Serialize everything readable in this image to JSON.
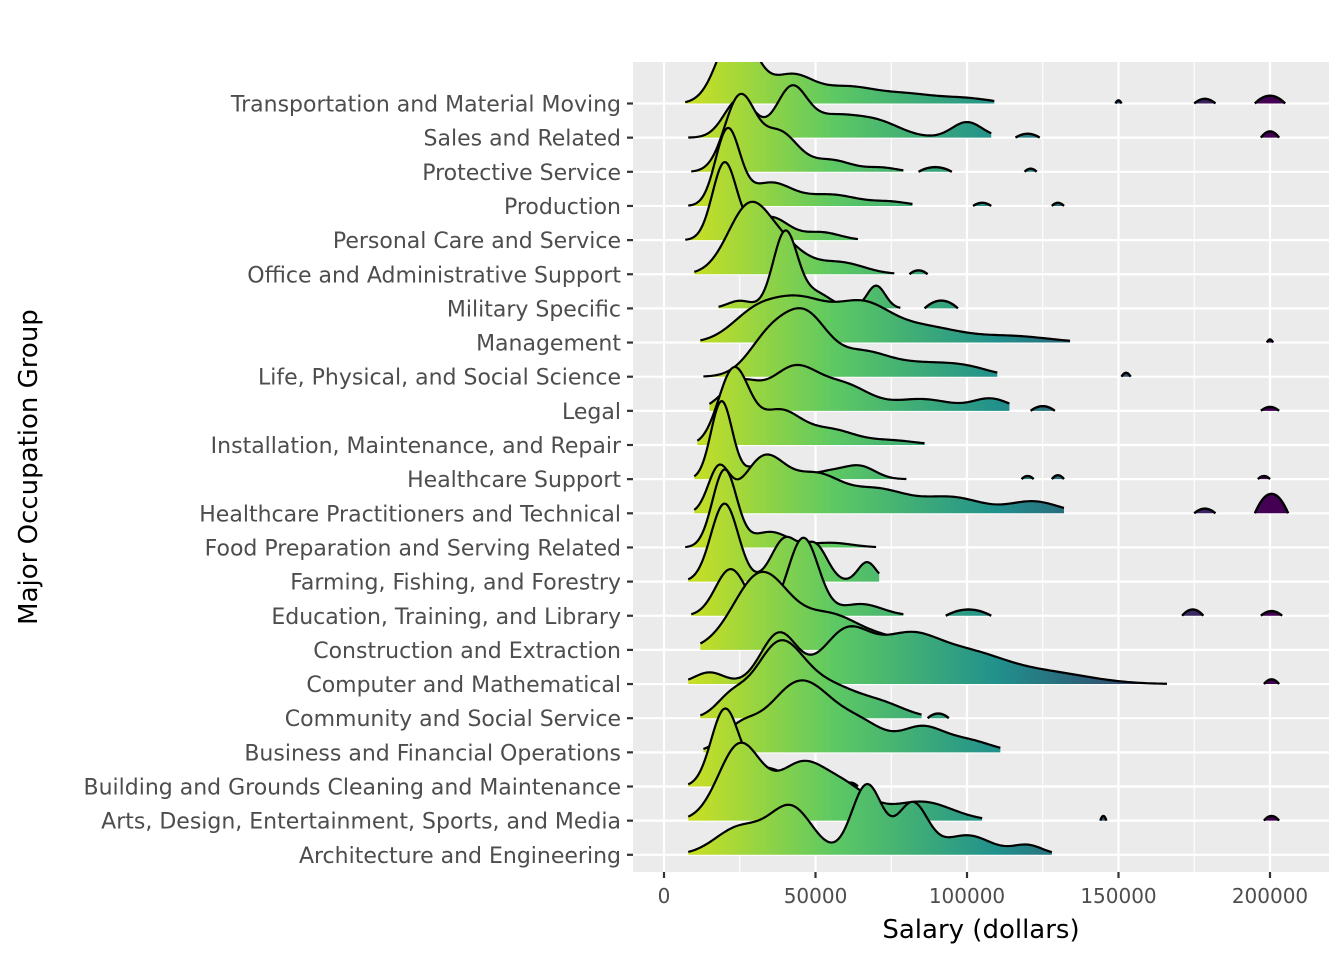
{
  "chart_data": {
    "type": "ridgeline",
    "xlabel": "Salary (dollars)",
    "ylabel": "Major Occupation Group",
    "xlim": [
      -10000,
      220000
    ],
    "xticks": [
      0,
      50000,
      100000,
      150000,
      200000
    ],
    "xtick_labels": [
      "0",
      "50000",
      "100000",
      "150000",
      "200000"
    ],
    "grid": true,
    "colors": {
      "panel_bg": "#ebebeb",
      "grid": "#ffffff",
      "outline": "#000000",
      "fill_low": "#dde318",
      "fill_mid": "#5ec962",
      "fill_high": "#21918c",
      "fill_top": "#440154"
    },
    "categories": [
      "Architecture and Engineering",
      "Arts, Design, Entertainment, Sports, and Media",
      "Building and Grounds Cleaning and Maintenance",
      "Business and Financial Operations",
      "Community and Social Service",
      "Computer and Mathematical",
      "Construction and Extraction",
      "Education, Training, and Library",
      "Farming, Fishing, and Forestry",
      "Food Preparation and Serving Related",
      "Healthcare Practitioners and Technical",
      "Healthcare Support",
      "Installation, Maintenance, and Repair",
      "Legal",
      "Life, Physical, and Social Science",
      "Management",
      "Military Specific",
      "Office and Administrative Support",
      "Personal Care and Service",
      "Production",
      "Protective Service",
      "Sales and Related",
      "Transportation and Material Moving"
    ],
    "series": [
      {
        "range": [
          8000,
          128000
        ],
        "peaks": [
          [
            25000,
            8000,
            0.35
          ],
          [
            42000,
            7000,
            0.6
          ],
          [
            67000,
            5000,
            0.9
          ],
          [
            82000,
            5000,
            0.65
          ],
          [
            100000,
            8000,
            0.25
          ],
          [
            120000,
            5000,
            0.12
          ]
        ],
        "islands": []
      },
      {
        "range": [
          8000,
          105000
        ],
        "peaks": [
          [
            25000,
            7000,
            1.0
          ],
          [
            45000,
            8000,
            0.7
          ],
          [
            60000,
            8000,
            0.4
          ],
          [
            85000,
            10000,
            0.25
          ]
        ],
        "islands": [
          [
            144000,
            146000,
            0.06
          ],
          [
            198000,
            203000,
            0.06
          ]
        ]
      },
      {
        "range": [
          8000,
          57000
        ],
        "peaks": [
          [
            20000,
            4500,
            1.0
          ],
          [
            33000,
            7000,
            0.25
          ],
          [
            48000,
            5000,
            0.1
          ]
        ],
        "islands": [
          [
            59000,
            64000,
            0.05
          ]
        ]
      },
      {
        "range": [
          13000,
          111000
        ],
        "peaks": [
          [
            25000,
            6000,
            0.3
          ],
          [
            40000,
            8000,
            0.55
          ],
          [
            50000,
            8000,
            0.55
          ],
          [
            65000,
            8000,
            0.35
          ],
          [
            85000,
            7000,
            0.3
          ],
          [
            100000,
            8000,
            0.15
          ]
        ],
        "islands": []
      },
      {
        "range": [
          12000,
          85000
        ],
        "peaks": [
          [
            22000,
            5000,
            0.25
          ],
          [
            38000,
            8000,
            1.0
          ],
          [
            55000,
            9000,
            0.4
          ],
          [
            72000,
            8000,
            0.18
          ]
        ],
        "islands": [
          [
            87000,
            94000,
            0.06
          ]
        ]
      },
      {
        "range": [
          8000,
          166000
        ],
        "peaks": [
          [
            15000,
            5000,
            0.15
          ],
          [
            38000,
            6000,
            0.65
          ],
          [
            60000,
            8000,
            0.65
          ],
          [
            80000,
            10000,
            0.55
          ],
          [
            100000,
            12000,
            0.35
          ],
          [
            125000,
            15000,
            0.15
          ]
        ],
        "islands": [
          [
            198000,
            203000,
            0.06
          ]
        ]
      },
      {
        "range": [
          12000,
          88000
        ],
        "peaks": [
          [
            32000,
            9000,
            1.0
          ],
          [
            55000,
            10000,
            0.45
          ],
          [
            75000,
            8000,
            0.12
          ]
        ],
        "islands": []
      },
      {
        "range": [
          9000,
          79000
        ],
        "peaks": [
          [
            22000,
            5000,
            0.6
          ],
          [
            46000,
            5000,
            1.0
          ],
          [
            65000,
            7000,
            0.15
          ]
        ],
        "islands": [
          [
            93000,
            108000,
            0.08
          ],
          [
            171000,
            178000,
            0.08
          ],
          [
            197000,
            204000,
            0.06
          ]
        ]
      },
      {
        "range": [
          8000,
          71000
        ],
        "peaks": [
          [
            20000,
            4500,
            1.0
          ],
          [
            40000,
            4500,
            0.55
          ],
          [
            50000,
            4000,
            0.45
          ],
          [
            67000,
            3000,
            0.25
          ]
        ],
        "islands": []
      },
      {
        "range": [
          7000,
          70000
        ],
        "peaks": [
          [
            20000,
            4000,
            1.0
          ],
          [
            35000,
            6000,
            0.2
          ],
          [
            55000,
            7000,
            0.06
          ]
        ],
        "islands": []
      },
      {
        "range": [
          10000,
          132000
        ],
        "peaks": [
          [
            18000,
            3500,
            0.55
          ],
          [
            33000,
            7000,
            0.7
          ],
          [
            50000,
            8000,
            0.45
          ],
          [
            70000,
            10000,
            0.3
          ],
          [
            95000,
            10000,
            0.2
          ],
          [
            122000,
            8000,
            0.15
          ]
        ],
        "islands": [
          [
            175000,
            182000,
            0.06
          ],
          [
            195000,
            206000,
            0.25
          ]
        ]
      },
      {
        "range": [
          10000,
          80000
        ],
        "peaks": [
          [
            19000,
            3500,
            1.0
          ],
          [
            35000,
            6000,
            0.25
          ],
          [
            55000,
            6000,
            0.1
          ],
          [
            65000,
            5000,
            0.15
          ]
        ],
        "islands": [
          [
            118000,
            122000,
            0.04
          ],
          [
            128000,
            132000,
            0.05
          ],
          [
            196000,
            200000,
            0.04
          ]
        ]
      },
      {
        "range": [
          11000,
          86000
        ],
        "peaks": [
          [
            23000,
            5000,
            1.0
          ],
          [
            38000,
            7000,
            0.45
          ],
          [
            55000,
            8000,
            0.2
          ],
          [
            75000,
            8000,
            0.06
          ]
        ],
        "islands": []
      },
      {
        "range": [
          15000,
          114000
        ],
        "peaks": [
          [
            25000,
            6000,
            0.35
          ],
          [
            43000,
            8000,
            0.55
          ],
          [
            60000,
            8000,
            0.3
          ],
          [
            85000,
            10000,
            0.15
          ],
          [
            108000,
            6000,
            0.15
          ]
        ],
        "islands": [
          [
            121000,
            129000,
            0.06
          ],
          [
            197000,
            203000,
            0.05
          ]
        ]
      },
      {
        "range": [
          13000,
          110000
        ],
        "peaks": [
          [
            35000,
            7000,
            0.5
          ],
          [
            47000,
            7000,
            0.7
          ],
          [
            65000,
            9000,
            0.3
          ],
          [
            85000,
            10000,
            0.15
          ],
          [
            100000,
            8000,
            0.1
          ]
        ],
        "islands": [
          [
            151000,
            154000,
            0.05
          ]
        ]
      },
      {
        "range": [
          12000,
          134000
        ],
        "peaks": [
          [
            30000,
            8000,
            0.35
          ],
          [
            45000,
            9000,
            0.5
          ],
          [
            65000,
            9000,
            0.45
          ],
          [
            85000,
            12000,
            0.2
          ],
          [
            115000,
            12000,
            0.08
          ]
        ],
        "islands": [
          [
            199000,
            201000,
            0.04
          ]
        ]
      },
      {
        "range": [
          18000,
          78000
        ],
        "peaks": [
          [
            25000,
            4000,
            0.1
          ],
          [
            40000,
            4000,
            1.0
          ],
          [
            50000,
            5000,
            0.2
          ],
          [
            70000,
            3000,
            0.3
          ]
        ],
        "islands": [
          [
            86000,
            97000,
            0.1
          ]
        ]
      },
      {
        "range": [
          10000,
          76000
        ],
        "peaks": [
          [
            28000,
            7000,
            0.85
          ],
          [
            40000,
            7000,
            0.3
          ],
          [
            58000,
            8000,
            0.15
          ]
        ],
        "islands": [
          [
            81000,
            87000,
            0.05
          ]
        ]
      },
      {
        "range": [
          7000,
          64000
        ],
        "peaks": [
          [
            20000,
            4000,
            1.0
          ],
          [
            35000,
            6000,
            0.3
          ],
          [
            52000,
            6000,
            0.1
          ]
        ],
        "islands": []
      },
      {
        "range": [
          8000,
          82000
        ],
        "peaks": [
          [
            21000,
            4000,
            1.0
          ],
          [
            35000,
            7000,
            0.3
          ],
          [
            55000,
            9000,
            0.15
          ],
          [
            75000,
            6000,
            0.05
          ]
        ],
        "islands": [
          [
            102000,
            108000,
            0.04
          ],
          [
            128000,
            132000,
            0.04
          ]
        ]
      },
      {
        "range": [
          9000,
          79000
        ],
        "peaks": [
          [
            25000,
            5000,
            0.95
          ],
          [
            38000,
            6000,
            0.5
          ],
          [
            55000,
            7000,
            0.15
          ],
          [
            72000,
            5000,
            0.05
          ]
        ],
        "islands": [
          [
            84000,
            95000,
            0.06
          ],
          [
            119000,
            123000,
            0.04
          ]
        ]
      },
      {
        "range": [
          8000,
          108000
        ],
        "peaks": [
          [
            25000,
            5000,
            0.5
          ],
          [
            42000,
            5000,
            0.6
          ],
          [
            55000,
            8000,
            0.25
          ],
          [
            70000,
            8000,
            0.2
          ],
          [
            100000,
            5000,
            0.2
          ]
        ],
        "islands": [
          [
            116000,
            124000,
            0.05
          ],
          [
            197000,
            203000,
            0.08
          ]
        ]
      },
      {
        "range": [
          7000,
          109000
        ],
        "peaks": [
          [
            24000,
            6000,
            1.0
          ],
          [
            42000,
            7000,
            0.35
          ],
          [
            60000,
            9000,
            0.2
          ],
          [
            80000,
            10000,
            0.12
          ],
          [
            100000,
            8000,
            0.06
          ]
        ],
        "islands": [
          [
            149000,
            151000,
            0.04
          ],
          [
            175000,
            182000,
            0.06
          ],
          [
            195000,
            205000,
            0.1
          ]
        ]
      }
    ]
  }
}
